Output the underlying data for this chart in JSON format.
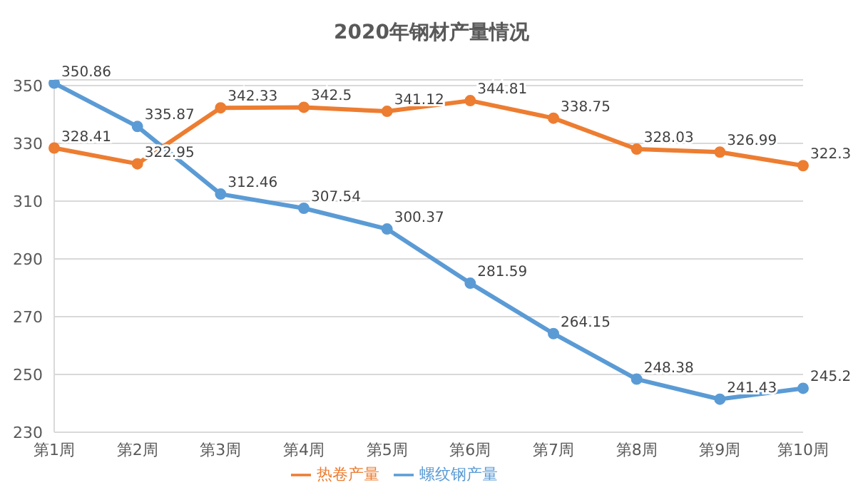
{
  "chart_data": {
    "type": "line",
    "title": "2020年钢材产量情况",
    "categories": [
      "第1周",
      "第2周",
      "第3周",
      "第4周",
      "第5周",
      "第6周",
      "第7周",
      "第8周",
      "第9周",
      "第10周"
    ],
    "series": [
      {
        "name": "螺纹钢产量",
        "color": "#5b9bd5",
        "values": [
          350.86,
          335.87,
          312.46,
          307.54,
          300.37,
          281.59,
          264.15,
          248.38,
          241.43,
          245.2
        ]
      },
      {
        "name": "热卷产量",
        "color": "#ed7d31",
        "values": [
          328.41,
          322.95,
          342.33,
          342.5,
          341.12,
          344.81,
          338.75,
          328.03,
          326.99,
          322.3
        ]
      }
    ],
    "ylim": [
      230,
      352
    ],
    "yticks": [
      230,
      250,
      270,
      290,
      310,
      330,
      350
    ],
    "grid": "y",
    "legend": "bottom",
    "marker": "circle",
    "line_style": "solid",
    "data_labels": true
  }
}
